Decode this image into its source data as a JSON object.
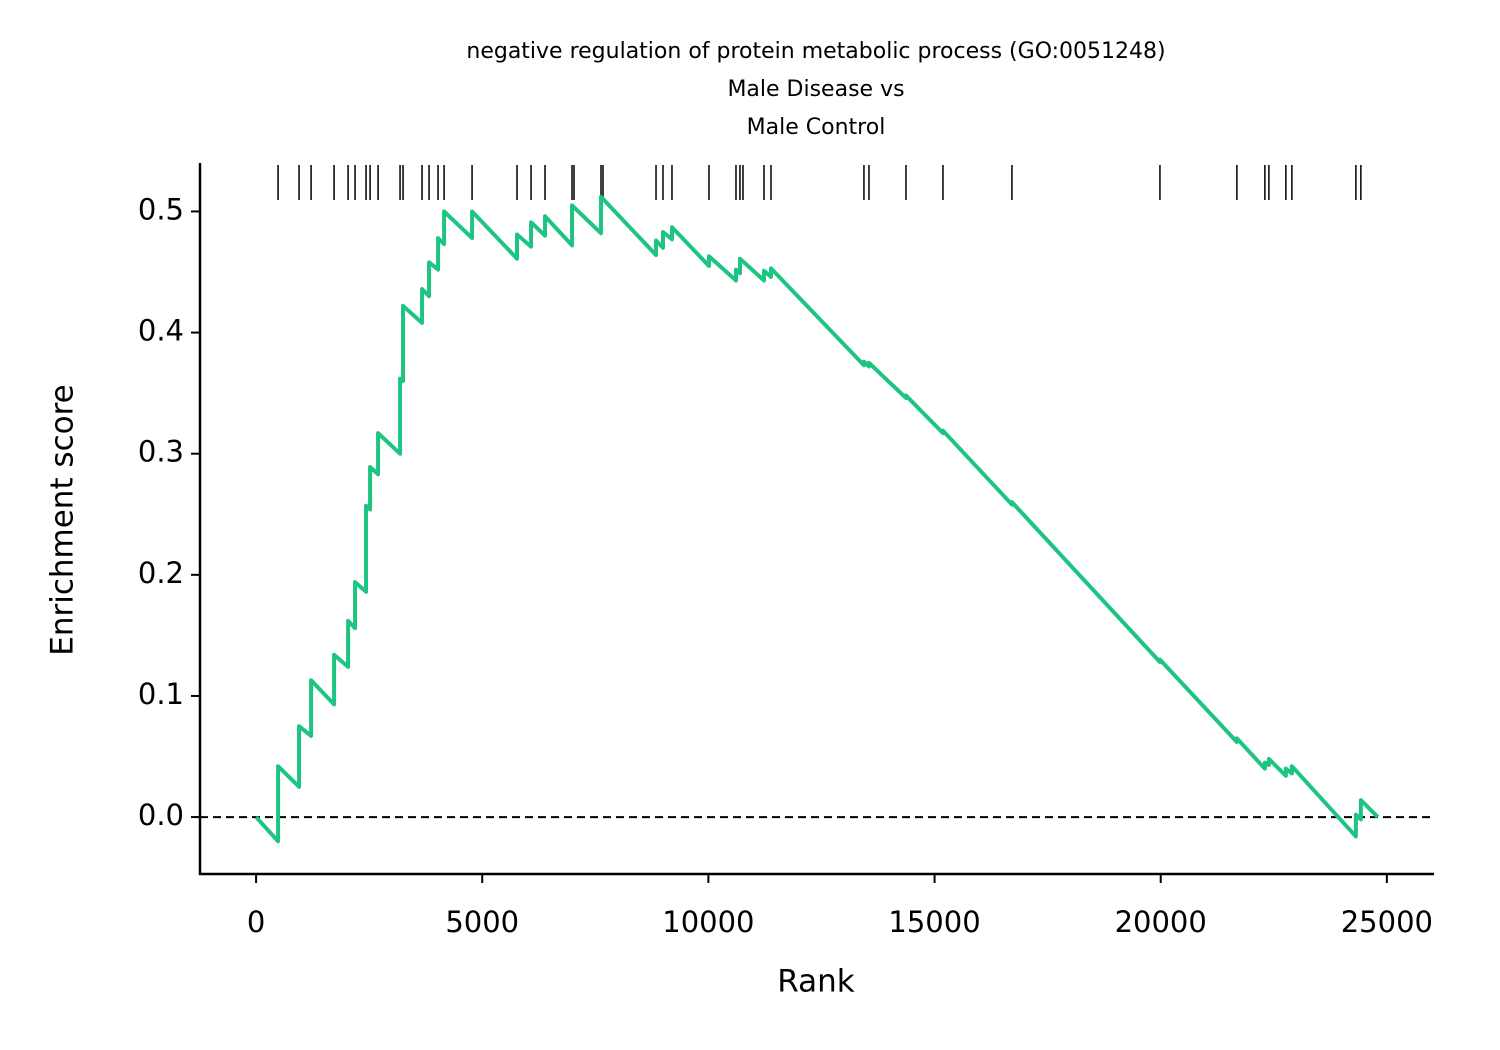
{
  "chart_data": {
    "type": "line",
    "title": [
      "negative regulation of protein metabolic process (GO:0051248)",
      "Male Disease vs",
      "Male Control"
    ],
    "xlabel": "Rank",
    "ylabel": "Enrichment score",
    "x": [
      0,
      486,
      486,
      950,
      950,
      1216,
      1216,
      1724,
      1724,
      2034,
      2034,
      2188,
      2188,
      2431,
      2431,
      2520,
      2520,
      2697,
      2697,
      3183,
      3183,
      3249,
      3249,
      3669,
      3669,
      3824,
      3824,
      4023,
      4023,
      4156,
      4156,
      4775,
      4775,
      5769,
      5769,
      6079,
      6079,
      6388,
      6388,
      6985,
      6985,
      7626,
      7626,
      8842,
      8842,
      8996,
      8996,
      9195,
      9195,
      10013,
      10013,
      10610,
      10610,
      10698,
      10698,
      11229,
      11229,
      11384,
      11384,
      13439,
      13439,
      13550,
      13550,
      14368,
      14368,
      15186,
      15186,
      16711,
      16711,
      19983,
      19983,
      21684,
      21684,
      22303,
      22303,
      22392,
      22392,
      22767,
      22767,
      22900,
      22900,
      24315,
      24315,
      24425,
      24425,
      24800
    ],
    "series": [
      {
        "color": "#1ec482",
        "values": [
          0,
          -0.02,
          0.042,
          0.025,
          0.075,
          0.067,
          0.113,
          0.093,
          0.134,
          0.124,
          0.162,
          0.156,
          0.194,
          0.186,
          0.257,
          0.254,
          0.289,
          0.283,
          0.317,
          0.3,
          0.362,
          0.36,
          0.422,
          0.408,
          0.436,
          0.43,
          0.458,
          0.452,
          0.478,
          0.473,
          0.5,
          0.478,
          0.5,
          0.461,
          0.481,
          0.471,
          0.491,
          0.48,
          0.496,
          0.472,
          0.505,
          0.482,
          0.512,
          0.464,
          0.476,
          0.47,
          0.483,
          0.477,
          0.487,
          0.455,
          0.463,
          0.443,
          0.452,
          0.449,
          0.461,
          0.443,
          0.451,
          0.446,
          0.453,
          0.373,
          0.376,
          0.372,
          0.375,
          0.346,
          0.348,
          0.317,
          0.319,
          0.258,
          0.26,
          0.128,
          0.13,
          0.062,
          0.065,
          0.04,
          0.045,
          0.043,
          0.048,
          0.034,
          0.04,
          0.036,
          0.042,
          -0.016,
          0.002,
          -0.002,
          0.014,
          0
        ]
      }
    ],
    "hits": [
      486,
      950,
      1216,
      1724,
      2034,
      2188,
      2431,
      2520,
      2697,
      3183,
      3249,
      3669,
      3824,
      4023,
      4156,
      4775,
      5769,
      6079,
      6388,
      6985,
      7029,
      7626,
      7670,
      8842,
      8996,
      9195,
      10013,
      10610,
      10698,
      10765,
      11229,
      11384,
      13439,
      13550,
      14368,
      15186,
      16711,
      19983,
      21684,
      22303,
      22392,
      22767,
      22900,
      24315,
      24425
    ],
    "hline": 0,
    "xlim": [
      -1240,
      26020
    ],
    "ylim": [
      -0.047,
      0.54
    ],
    "xticks": [
      0,
      5000,
      10000,
      15000,
      20000,
      25000
    ],
    "yticks": [
      {
        "value": 0,
        "label": "0.0"
      },
      0.1,
      0.2,
      0.3,
      0.4,
      0.5
    ]
  }
}
